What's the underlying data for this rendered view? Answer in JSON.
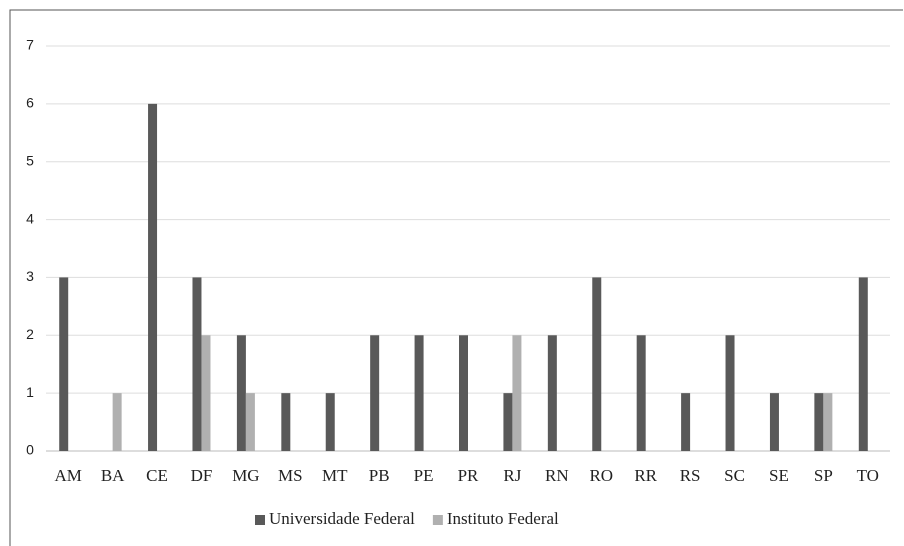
{
  "chart_data": {
    "type": "bar",
    "categories": [
      "AM",
      "BA",
      "CE",
      "DF",
      "MG",
      "MS",
      "MT",
      "PB",
      "PE",
      "PR",
      "RJ",
      "RN",
      "RO",
      "RR",
      "RS",
      "SC",
      "SE",
      "SP",
      "TO"
    ],
    "series": [
      {
        "name": "Universidade Federal",
        "color": "#595959",
        "values": [
          3,
          0,
          6,
          3,
          2,
          1,
          1,
          2,
          2,
          2,
          1,
          2,
          3,
          2,
          1,
          2,
          1,
          1,
          3
        ]
      },
      {
        "name": "Instituto Federal",
        "color": "#b0b0b0",
        "values": [
          0,
          1,
          0,
          2,
          1,
          0,
          0,
          0,
          0,
          0,
          2,
          0,
          0,
          0,
          0,
          0,
          0,
          1,
          0
        ]
      }
    ],
    "ylim": [
      0,
      7
    ],
    "yticks": [
      0,
      1,
      2,
      3,
      4,
      5,
      6,
      7
    ],
    "grid": true,
    "legend": "bottom"
  }
}
